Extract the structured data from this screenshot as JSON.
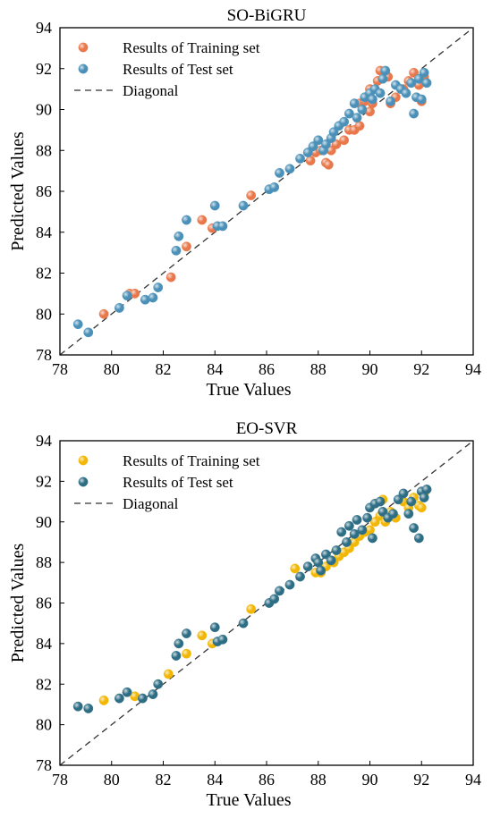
{
  "chart_data": [
    {
      "type": "scatter",
      "title": "SO-BiGRU",
      "xlabel": "True Values",
      "ylabel": "Predicted Values",
      "xlim": [
        78,
        94
      ],
      "ylim": [
        78,
        94
      ],
      "xticks": [
        "78",
        "80",
        "82",
        "84",
        "86",
        "88",
        "90",
        "92",
        "94"
      ],
      "yticks": [
        "78",
        "80",
        "82",
        "84",
        "86",
        "88",
        "90",
        "92",
        "94"
      ],
      "grid": false,
      "legend_position": "top-left",
      "diagonal": {
        "name": "Diagonal",
        "from": [
          78,
          78
        ],
        "to": [
          94,
          94
        ],
        "color": "#333333"
      },
      "series": [
        {
          "name": "Results of Training set",
          "color": "#E8784B",
          "points": [
            [
              79.7,
              80.0
            ],
            [
              80.7,
              81.0
            ],
            [
              80.9,
              81.0
            ],
            [
              82.3,
              81.8
            ],
            [
              82.9,
              83.3
            ],
            [
              83.5,
              84.6
            ],
            [
              83.9,
              84.2
            ],
            [
              85.4,
              85.8
            ],
            [
              87.7,
              87.5
            ],
            [
              87.9,
              87.9
            ],
            [
              88.1,
              88.0
            ],
            [
              88.3,
              87.4
            ],
            [
              88.4,
              87.3
            ],
            [
              88.5,
              88.0
            ],
            [
              88.7,
              88.3
            ],
            [
              89.0,
              88.5
            ],
            [
              89.2,
              89.0
            ],
            [
              89.4,
              89.0
            ],
            [
              89.6,
              89.2
            ],
            [
              89.6,
              90.3
            ],
            [
              89.8,
              90.4
            ],
            [
              90.0,
              89.9
            ],
            [
              90.0,
              91.0
            ],
            [
              90.1,
              90.3
            ],
            [
              90.3,
              91.4
            ],
            [
              90.4,
              91.9
            ],
            [
              90.7,
              91.6
            ],
            [
              90.8,
              90.3
            ],
            [
              91.0,
              90.6
            ],
            [
              91.3,
              91.0
            ],
            [
              91.5,
              91.4
            ],
            [
              91.7,
              91.8
            ],
            [
              91.9,
              91.2
            ],
            [
              92.0,
              90.4
            ],
            [
              92.1,
              91.6
            ]
          ]
        },
        {
          "name": "Results of Test set",
          "color": "#4A90B8",
          "points": [
            [
              78.7,
              79.5
            ],
            [
              79.1,
              79.1
            ],
            [
              80.3,
              80.3
            ],
            [
              80.6,
              80.9
            ],
            [
              81.3,
              80.7
            ],
            [
              81.6,
              80.8
            ],
            [
              81.8,
              81.3
            ],
            [
              82.5,
              83.1
            ],
            [
              82.6,
              83.8
            ],
            [
              82.9,
              84.6
            ],
            [
              84.0,
              85.3
            ],
            [
              84.1,
              84.3
            ],
            [
              84.3,
              84.3
            ],
            [
              85.1,
              85.3
            ],
            [
              86.1,
              86.1
            ],
            [
              86.3,
              86.2
            ],
            [
              86.5,
              86.9
            ],
            [
              86.9,
              87.1
            ],
            [
              87.3,
              87.6
            ],
            [
              87.6,
              87.9
            ],
            [
              87.8,
              88.2
            ],
            [
              88.0,
              88.5
            ],
            [
              88.2,
              88.0
            ],
            [
              88.3,
              88.3
            ],
            [
              88.5,
              88.6
            ],
            [
              88.6,
              88.9
            ],
            [
              88.8,
              89.2
            ],
            [
              89.0,
              89.4
            ],
            [
              89.2,
              89.8
            ],
            [
              89.4,
              90.3
            ],
            [
              89.5,
              89.6
            ],
            [
              89.7,
              90.0
            ],
            [
              89.8,
              90.6
            ],
            [
              90.0,
              90.8
            ],
            [
              90.1,
              90.5
            ],
            [
              90.2,
              91.0
            ],
            [
              90.4,
              90.8
            ],
            [
              90.5,
              91.5
            ],
            [
              90.6,
              91.9
            ],
            [
              90.8,
              90.4
            ],
            [
              91.0,
              91.2
            ],
            [
              91.2,
              91.0
            ],
            [
              91.4,
              90.8
            ],
            [
              91.6,
              91.3
            ],
            [
              91.7,
              89.8
            ],
            [
              91.8,
              90.6
            ],
            [
              91.9,
              91.5
            ],
            [
              92.0,
              90.5
            ],
            [
              92.1,
              91.8
            ],
            [
              92.2,
              91.3
            ]
          ]
        }
      ]
    },
    {
      "type": "scatter",
      "title": "EO-SVR",
      "xlabel": "True Values",
      "ylabel": "Predicted Values",
      "xlim": [
        78,
        94
      ],
      "ylim": [
        78,
        94
      ],
      "xticks": [
        "78",
        "80",
        "82",
        "84",
        "86",
        "88",
        "90",
        "92",
        "94"
      ],
      "yticks": [
        "78",
        "80",
        "82",
        "84",
        "86",
        "88",
        "90",
        "92",
        "94"
      ],
      "grid": false,
      "legend_position": "top-left",
      "diagonal": {
        "name": "Diagonal",
        "from": [
          78,
          78
        ],
        "to": [
          94,
          94
        ],
        "color": "#333333"
      },
      "series": [
        {
          "name": "Results of Training set",
          "color": "#F2B705",
          "points": [
            [
              79.7,
              81.2
            ],
            [
              80.9,
              81.4
            ],
            [
              82.2,
              82.5
            ],
            [
              82.9,
              83.5
            ],
            [
              83.5,
              84.4
            ],
            [
              83.9,
              84.0
            ],
            [
              85.4,
              85.7
            ],
            [
              87.1,
              87.7
            ],
            [
              87.9,
              87.5
            ],
            [
              88.1,
              87.5
            ],
            [
              88.3,
              87.8
            ],
            [
              88.6,
              88.0
            ],
            [
              88.8,
              88.3
            ],
            [
              89.0,
              88.5
            ],
            [
              89.2,
              88.7
            ],
            [
              89.4,
              89.0
            ],
            [
              89.6,
              89.3
            ],
            [
              89.8,
              89.5
            ],
            [
              90.0,
              89.6
            ],
            [
              90.2,
              90.0
            ],
            [
              90.4,
              90.3
            ],
            [
              90.5,
              91.1
            ],
            [
              90.6,
              90.0
            ],
            [
              90.8,
              90.5
            ],
            [
              91.0,
              90.2
            ],
            [
              91.3,
              91.0
            ],
            [
              91.5,
              90.7
            ],
            [
              91.7,
              91.2
            ],
            [
              91.9,
              90.8
            ],
            [
              92.0,
              90.7
            ],
            [
              92.1,
              91.4
            ]
          ]
        },
        {
          "name": "Results of Test set",
          "color": "#2E6E85",
          "points": [
            [
              78.7,
              80.9
            ],
            [
              79.1,
              80.8
            ],
            [
              80.3,
              81.3
            ],
            [
              80.6,
              81.6
            ],
            [
              81.2,
              81.3
            ],
            [
              81.6,
              81.5
            ],
            [
              81.8,
              82.0
            ],
            [
              82.5,
              83.4
            ],
            [
              82.6,
              84.0
            ],
            [
              82.9,
              84.5
            ],
            [
              84.0,
              84.8
            ],
            [
              84.1,
              84.1
            ],
            [
              84.3,
              84.2
            ],
            [
              85.1,
              85.0
            ],
            [
              86.1,
              86.0
            ],
            [
              86.3,
              86.2
            ],
            [
              86.5,
              86.6
            ],
            [
              86.9,
              86.9
            ],
            [
              87.3,
              87.3
            ],
            [
              87.6,
              87.8
            ],
            [
              87.9,
              88.2
            ],
            [
              88.0,
              88.0
            ],
            [
              88.1,
              87.6
            ],
            [
              88.3,
              88.4
            ],
            [
              88.5,
              88.1
            ],
            [
              88.7,
              88.6
            ],
            [
              88.9,
              89.5
            ],
            [
              89.1,
              89.0
            ],
            [
              89.2,
              89.8
            ],
            [
              89.4,
              89.4
            ],
            [
              89.5,
              90.1
            ],
            [
              89.7,
              89.6
            ],
            [
              89.9,
              90.2
            ],
            [
              90.0,
              90.7
            ],
            [
              90.1,
              89.2
            ],
            [
              90.2,
              90.9
            ],
            [
              90.4,
              91.0
            ],
            [
              90.5,
              90.5
            ],
            [
              90.7,
              90.2
            ],
            [
              90.9,
              90.4
            ],
            [
              91.1,
              91.1
            ],
            [
              91.3,
              91.4
            ],
            [
              91.5,
              90.4
            ],
            [
              91.6,
              91.0
            ],
            [
              91.7,
              89.7
            ],
            [
              91.9,
              89.2
            ],
            [
              92.0,
              91.5
            ],
            [
              92.1,
              91.2
            ],
            [
              92.2,
              91.6
            ]
          ]
        }
      ]
    }
  ]
}
